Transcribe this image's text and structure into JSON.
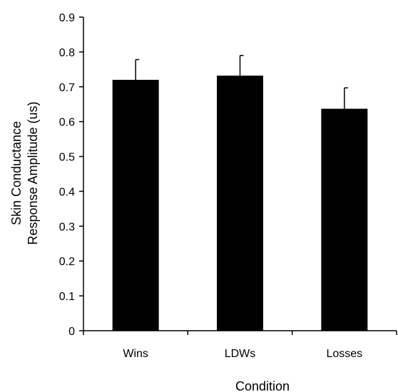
{
  "chart_data": {
    "type": "bar",
    "categories": [
      "Wins",
      "LDWs",
      "Losses"
    ],
    "values": [
      0.72,
      0.732,
      0.637
    ],
    "error_upper": [
      0.778,
      0.79,
      0.697
    ],
    "xlabel": "Condition",
    "ylabel_lines": [
      "Skin Conductance",
      "Response Amplitude (us)"
    ],
    "ylim": [
      0,
      0.9
    ],
    "yticks": [
      "0",
      "0.1",
      "0.2",
      "0.3",
      "0.4",
      "0.5",
      "0.6",
      "0.7",
      "0.8",
      "0.9"
    ],
    "grid": false,
    "legend": "none",
    "bar_color": "#000000"
  }
}
